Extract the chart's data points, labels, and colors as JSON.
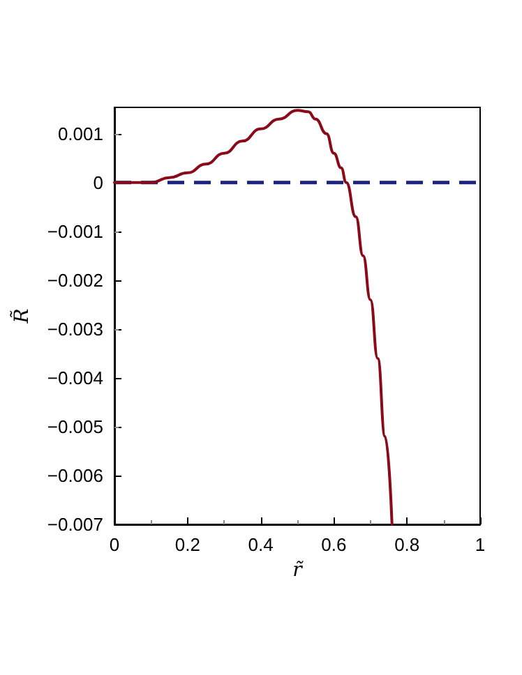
{
  "chart_data": {
    "type": "line",
    "xlabel": "r̃",
    "ylabel": "R̃",
    "x": [
      0,
      0.05,
      0.1,
      0.15,
      0.2,
      0.25,
      0.3,
      0.35,
      0.4,
      0.45,
      0.5,
      0.53,
      0.55,
      0.58,
      0.6,
      0.62,
      0.634,
      0.66,
      0.68,
      0.7,
      0.72,
      0.74,
      0.759
    ],
    "series": [
      {
        "color": "#8b0a1a",
        "values": [
          0,
          0,
          0,
          0.0001,
          0.0002,
          0.00038,
          0.0006,
          0.00085,
          0.0011,
          0.0013,
          0.00148,
          0.00145,
          0.0013,
          0.001,
          0.0006,
          0.0003,
          0,
          -0.0007,
          -0.0015,
          -0.0024,
          -0.0036,
          -0.0052,
          -0.007
        ]
      }
    ],
    "xlim": [
      0,
      1
    ],
    "xticks": [
      0,
      0.2,
      0.4,
      0.6,
      0.8,
      1
    ],
    "ylim": [
      -0.007,
      0.00154
    ],
    "yticks": [
      {
        "value": -0.007,
        "label": "−0.007"
      },
      {
        "value": -0.006,
        "label": "−0.006"
      },
      {
        "value": -0.005,
        "label": "−0.005"
      },
      {
        "value": -0.004,
        "label": "−0.004"
      },
      {
        "value": -0.003,
        "label": "−0.003"
      },
      {
        "value": -0.002,
        "label": "−0.002"
      },
      {
        "value": -0.001,
        "label": "−0.001"
      },
      0,
      0.001
    ],
    "ref_lines": [
      {
        "axis": "y",
        "value": 0,
        "color": "#1a237e",
        "line_style": "dashed"
      }
    ],
    "grid": false,
    "marker": "none",
    "line_style": "solid"
  }
}
